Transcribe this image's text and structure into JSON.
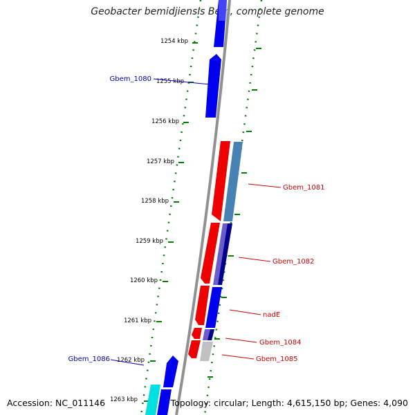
{
  "title": "Geobacter bemidjiensis Bem, complete genome",
  "footer": {
    "accession": "Accession: NC_011146",
    "summary": "Topology: circular; Length: 4,615,150 bp; Genes: 4,090"
  },
  "ticks": [
    "1254 kbp",
    "1255 kbp",
    "1256 kbp",
    "1257 kbp",
    "1258 kbp",
    "1259 kbp",
    "1260 kbp",
    "1261 kbp",
    "1262 kbp",
    "1263 kbp"
  ],
  "genes": {
    "gbem_1080": "Gbem_1080",
    "gbem_1081": "Gbem_1081",
    "gbem_1082": "Gbem_1082",
    "nade": "nadE",
    "gbem_1084": "Gbem_1084",
    "gbem_1085": "Gbem_1085",
    "gbem_1086": "Gbem_1086"
  },
  "colors": {
    "forward_cds": "#0000ee",
    "reverse_cds": "#ee0000",
    "rna": "#4682b4",
    "purple": "#6a5acd",
    "navy": "#00008b",
    "gray": "#c0c0c0",
    "cyan": "#00ffff",
    "backbone": "#909090",
    "dotted_ring": "#008000"
  }
}
